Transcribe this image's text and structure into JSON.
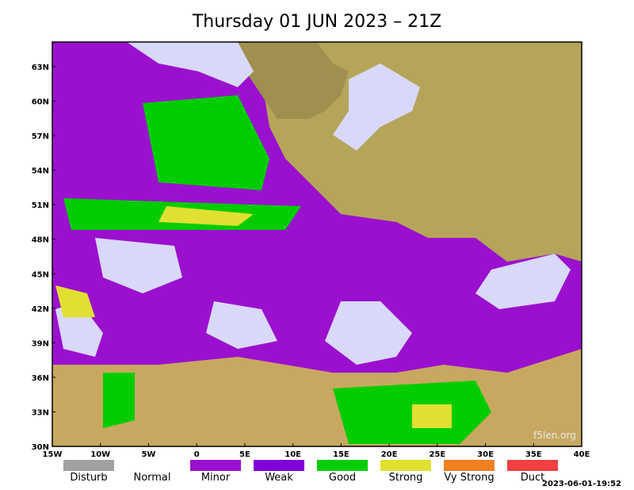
{
  "header": {
    "title": "Thursday 01 JUN 2023 – 21Z"
  },
  "lat_labels": [
    "63N",
    "60N",
    "57N",
    "54N",
    "51N",
    "48N",
    "45N",
    "42N",
    "39N",
    "36N",
    "33N",
    "30N"
  ],
  "lon_labels": [
    "15W",
    "10W",
    "5W",
    "0",
    "5E",
    "10E",
    "15E",
    "20E",
    "25E",
    "30E",
    "35E",
    "40E"
  ],
  "legend": [
    "Disturb",
    "Normal",
    "Minor",
    "Weak",
    "Good",
    "Strong",
    "Vy Strong",
    "Duct"
  ],
  "timestamp": "2023-06-01-19:52",
  "watermark": "f5len.org"
}
